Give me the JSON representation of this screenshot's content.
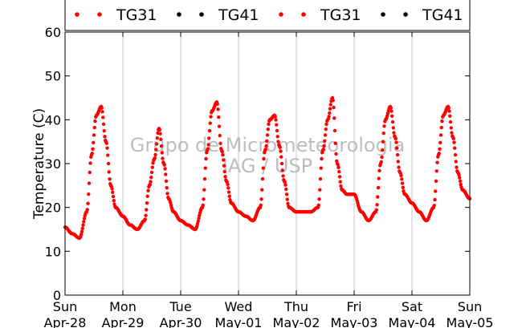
{
  "chart_data": {
    "type": "scatter",
    "title": "",
    "xlabel": "",
    "ylabel": "Temperature (C)",
    "ylim": [
      0,
      60
    ],
    "yticks": [
      0,
      10,
      20,
      30,
      40,
      50,
      60
    ],
    "xlim_days": [
      0,
      7
    ],
    "xticks": [
      {
        "day": "Sun",
        "date": "Apr-28"
      },
      {
        "day": "Mon",
        "date": "Apr-29"
      },
      {
        "day": "Tue",
        "date": "Apr-30"
      },
      {
        "day": "Wed",
        "date": "May-01"
      },
      {
        "day": "Thu",
        "date": "May-02"
      },
      {
        "day": "Fri",
        "date": "May-03"
      },
      {
        "day": "Sat",
        "date": "May-04"
      },
      {
        "day": "Sun",
        "date": "May-05"
      }
    ],
    "grid": "vertical",
    "legend_position": "top",
    "legend": [
      {
        "label": "TG31",
        "color": "#ff0000"
      },
      {
        "label": "TG41",
        "color": "#000000"
      },
      {
        "label": "TG31",
        "color": "#ff0000"
      },
      {
        "label": "TG41",
        "color": "#000000"
      }
    ],
    "watermark": [
      "Grupo de Micrometeorologia",
      "IAG / USP"
    ],
    "series": [
      {
        "name": "TG31",
        "color": "#ff0000",
        "x": [
          "2013-04-28 00:00",
          "2013-04-28 03:00",
          "2013-04-28 06:00",
          "2013-04-28 09:00",
          "2013-04-28 11:00",
          "2013-04-28 13:00",
          "2013-04-28 15:00",
          "2013-04-28 17:00",
          "2013-04-28 19:00",
          "2013-04-28 21:00",
          "2013-04-29 00:00",
          "2013-04-29 03:00",
          "2013-04-29 06:00",
          "2013-04-29 09:00",
          "2013-04-29 11:00",
          "2013-04-29 13:00",
          "2013-04-29 15:00",
          "2013-04-29 17:00",
          "2013-04-29 19:00",
          "2013-04-29 21:00",
          "2013-04-30 00:00",
          "2013-04-30 03:00",
          "2013-04-30 06:00",
          "2013-04-30 09:00",
          "2013-04-30 11:00",
          "2013-04-30 13:00",
          "2013-04-30 15:00",
          "2013-04-30 17:00",
          "2013-04-30 19:00",
          "2013-04-30 21:00",
          "2013-05-01 00:00",
          "2013-05-01 03:00",
          "2013-05-01 06:00",
          "2013-05-01 09:00",
          "2013-05-01 11:00",
          "2013-05-01 13:00",
          "2013-05-01 15:00",
          "2013-05-01 17:00",
          "2013-05-01 19:00",
          "2013-05-01 21:00",
          "2013-05-02 00:00",
          "2013-05-02 03:00",
          "2013-05-02 06:00",
          "2013-05-02 09:00",
          "2013-05-02 11:00",
          "2013-05-02 13:00",
          "2013-05-02 15:00",
          "2013-05-02 17:00",
          "2013-05-02 19:00",
          "2013-05-02 21:00",
          "2013-05-03 00:00",
          "2013-05-03 03:00",
          "2013-05-03 06:00",
          "2013-05-03 09:00",
          "2013-05-03 11:00",
          "2013-05-03 13:00",
          "2013-05-03 15:00",
          "2013-05-03 17:00",
          "2013-05-03 19:00",
          "2013-05-03 21:00",
          "2013-05-04 00:00",
          "2013-05-04 03:00",
          "2013-05-04 06:00",
          "2013-05-04 09:00",
          "2013-05-04 11:00",
          "2013-05-04 13:00",
          "2013-05-04 15:00",
          "2013-05-04 17:00",
          "2013-05-04 19:00",
          "2013-05-04 21:00",
          "2013-05-05 00:00"
        ],
        "y": [
          15.5,
          14,
          13,
          19,
          32,
          41,
          43,
          35,
          25,
          20,
          18,
          16,
          15,
          17,
          25,
          31,
          38,
          30,
          22,
          19,
          17,
          16,
          15,
          20,
          33,
          42,
          44,
          33,
          26,
          21,
          19,
          18,
          17,
          20,
          33,
          40,
          41,
          34,
          26,
          20,
          19,
          19,
          19,
          20,
          33,
          40,
          45,
          30,
          24,
          23,
          23,
          19,
          17,
          19,
          30,
          40,
          43,
          36,
          28,
          23,
          21,
          19,
          17,
          20,
          32,
          41,
          43,
          36,
          28,
          24,
          22
        ]
      }
    ]
  }
}
